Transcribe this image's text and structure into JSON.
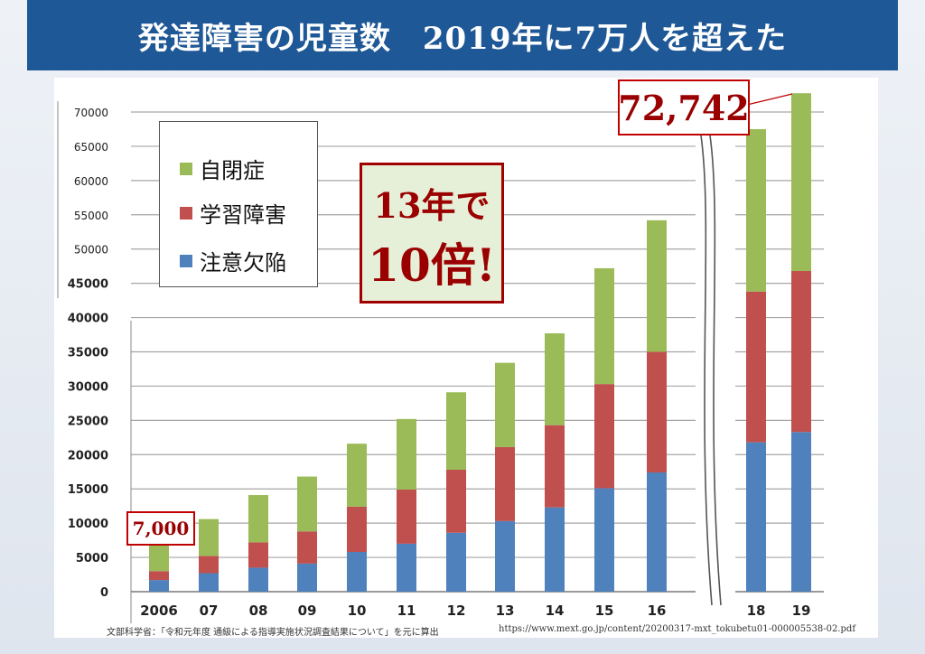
{
  "title": "発達障害の児童数　2019年に7万人を超えた",
  "chart_data": {
    "type": "bar",
    "stacked": true,
    "categories": [
      "2006",
      "07",
      "08",
      "09",
      "10",
      "11",
      "12",
      "13",
      "14",
      "15",
      "16",
      "18",
      "19"
    ],
    "series": [
      {
        "name": "注意欠陥",
        "color": "#4f81bd",
        "values": [
          1700,
          2700,
          3500,
          4100,
          5800,
          7000,
          8600,
          10300,
          12300,
          15100,
          17400,
          21800,
          23300
        ]
      },
      {
        "name": "学習障害",
        "color": "#c0504d",
        "values": [
          1300,
          2500,
          3700,
          4700,
          6600,
          7900,
          9200,
          10800,
          12000,
          15200,
          17600,
          22000,
          23500
        ]
      },
      {
        "name": "自閉症",
        "color": "#9bbb59",
        "values": [
          4000,
          5400,
          6900,
          8000,
          9200,
          10300,
          11300,
          12300,
          13400,
          16900,
          19200,
          23700,
          25942
        ]
      }
    ],
    "y_ticks": [
      0,
      5000,
      10000,
      15000,
      20000,
      25000,
      30000,
      35000,
      40000,
      45000,
      50000,
      55000,
      60000,
      65000,
      70000
    ],
    "ylim": [
      0,
      70000
    ],
    "grid": true,
    "legend_position": "top-left",
    "axis_break_between": [
      "16",
      "18"
    ]
  },
  "legend": {
    "items": [
      {
        "label": "自閉症",
        "color": "#9bbb59"
      },
      {
        "label": "学習障害",
        "color": "#c0504d"
      },
      {
        "label": "注意欠陥",
        "color": "#4f81bd"
      }
    ]
  },
  "annotations": {
    "total_2019": "72,742",
    "total_2006": "7,000",
    "growth_line1": "13年で",
    "growth_line2": "10倍!"
  },
  "source": {
    "left": "文部科学省：「令和元年度 通級による指導実施状況調査結果について」を元に算出",
    "right": "https://www.mext.go.jp/content/20200317-mxt_tokubetu01-000005538-02.pdf"
  }
}
